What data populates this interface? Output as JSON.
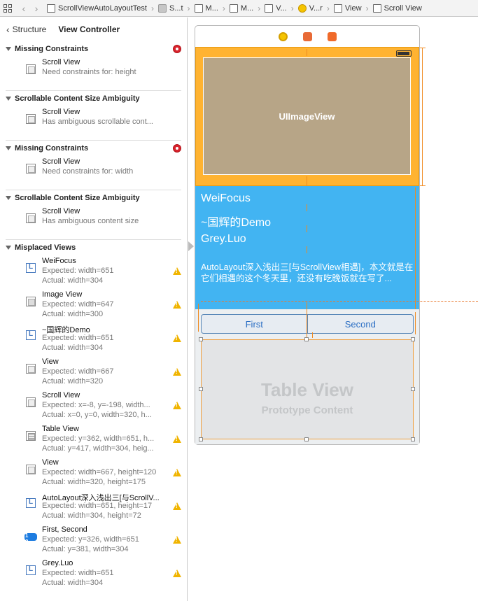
{
  "jumpbar": {
    "items": [
      "ScrollViewAutoLayoutTest",
      "S...t",
      "M...",
      "M...",
      "V...",
      "V...r",
      "View",
      "Scroll View"
    ],
    "sep": "›"
  },
  "left": {
    "back": "‹",
    "crumb": "Structure",
    "title": "View Controller"
  },
  "sections": [
    {
      "title": "Missing Constraints",
      "error": true,
      "rows": [
        {
          "name": "Scroll View",
          "sub": "Need constraints for: height"
        }
      ]
    },
    {
      "title": "Scrollable Content Size Ambiguity",
      "rows": [
        {
          "name": "Scroll View",
          "sub": "Has ambiguous scrollable cont..."
        }
      ]
    },
    {
      "title": "Missing Constraints",
      "error": true,
      "rows": [
        {
          "name": "Scroll View",
          "sub": "Need constraints for: width"
        }
      ]
    },
    {
      "title": "Scrollable Content Size Ambiguity",
      "rows": [
        {
          "name": "Scroll View",
          "sub": "Has ambiguous content size"
        }
      ]
    }
  ],
  "misplaced": {
    "title": "Misplaced Views",
    "rows": [
      {
        "icon": "label",
        "name": "WeiFocus",
        "e": "Expected: width=651",
        "a": "Actual: width=304"
      },
      {
        "icon": "image",
        "name": "Image View",
        "e": "Expected: width=647",
        "a": "Actual: width=300"
      },
      {
        "icon": "label",
        "name": "~国辉的Demo",
        "e": "Expected: width=651",
        "a": "Actual: width=304"
      },
      {
        "icon": "view",
        "name": "View",
        "e": "Expected: width=667",
        "a": "Actual: width=320"
      },
      {
        "icon": "view",
        "name": "Scroll View",
        "e": "Expected: x=-8, y=-198, width...",
        "a": "Actual: x=0, y=0, width=320, h..."
      },
      {
        "icon": "table",
        "name": "Table View",
        "e": "Expected: y=362, width=651, h...",
        "a": "Actual: y=417, width=304, heig..."
      },
      {
        "icon": "view",
        "name": "View",
        "e": "Expected: width=667, height=120",
        "a": "Actual: width=320, height=175"
      },
      {
        "icon": "label",
        "name": "AutoLayout深入浅出三[与ScrollV...",
        "e": "Expected: width=651, height=17",
        "a": "Actual: width=304, height=72"
      },
      {
        "icon": "segment",
        "name": "First, Second",
        "e": "Expected: y=326, width=651",
        "a": "Actual: y=381, width=304"
      },
      {
        "icon": "label",
        "name": "Grey.Luo",
        "e": "Expected: width=651",
        "a": "Actual: width=304"
      }
    ]
  },
  "canvas": {
    "image_view_label": "UIImageView",
    "lines": [
      "WeiFocus",
      "~国辉的Demo",
      "Grey.Luo"
    ],
    "paragraph": "AutoLayout深入浅出三[与ScrollView相遇]，本文就是在它们相遇的这个冬天里，还没有吃晚饭就在写了...",
    "segments": [
      "First",
      "Second"
    ],
    "table_title": "Table View",
    "table_sub": "Prototype Content"
  },
  "colors": {
    "orange": "#ffb331",
    "blue": "#42b4f2",
    "image": "#b7a587",
    "warning": "#f0b400",
    "error": "#d9232d"
  }
}
